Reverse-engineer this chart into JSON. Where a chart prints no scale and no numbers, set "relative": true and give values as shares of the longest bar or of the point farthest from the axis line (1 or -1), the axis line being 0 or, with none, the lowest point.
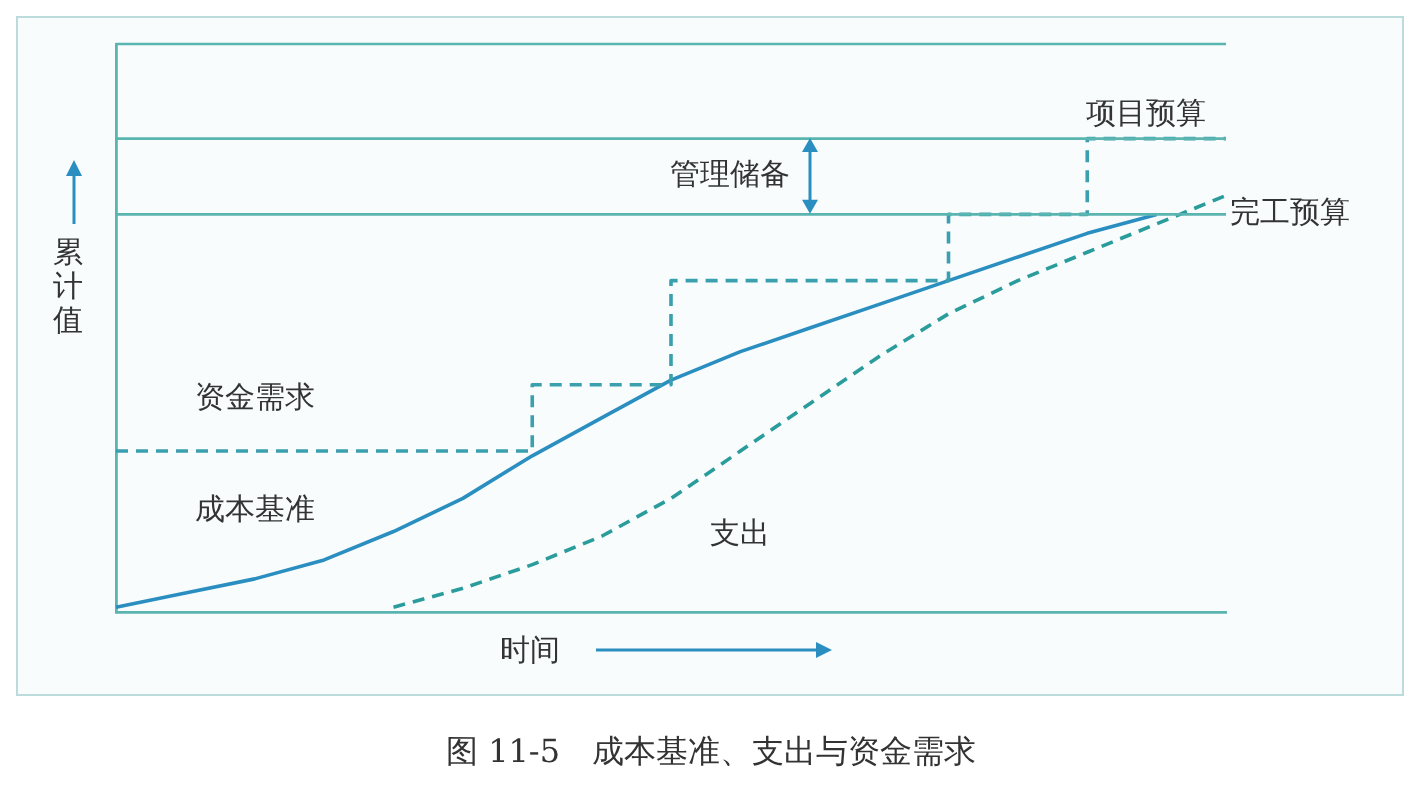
{
  "chart_data": {
    "type": "line",
    "relative": true,
    "xlabel": "时间",
    "ylabel": "累计值",
    "grid": false,
    "legend": false,
    "tick_labels": false,
    "marker": "none",
    "categories": [
      null,
      null,
      null,
      null,
      null,
      null,
      null,
      null,
      null,
      null,
      null,
      null,
      null,
      null,
      null,
      null,
      null
    ],
    "series": [
      {
        "name": "资金需求",
        "type": "step",
        "color": "#3a9fae",
        "line_style": "dashed",
        "values": [
          0.34,
          0.34,
          0.34,
          0.34,
          0.34,
          0.34,
          0.48,
          0.48,
          0.7,
          0.7,
          0.7,
          0.7,
          0.84,
          0.84,
          1.0,
          1.0,
          1.0
        ]
      },
      {
        "name": "成本基准",
        "type": "line",
        "color": "#2a8fc0",
        "line_style": "solid",
        "values": [
          0.01,
          0.04,
          0.07,
          0.11,
          0.17,
          0.24,
          0.33,
          0.41,
          0.49,
          0.55,
          0.6,
          0.65,
          0.7,
          0.75,
          0.8,
          0.84,
          null
        ]
      },
      {
        "name": "支出",
        "type": "line",
        "color": "#2b9c9c",
        "line_style": "dashed",
        "values": [
          null,
          null,
          null,
          null,
          0.01,
          0.05,
          0.1,
          0.16,
          0.24,
          0.34,
          0.44,
          0.54,
          0.63,
          0.7,
          0.76,
          0.82,
          0.88
        ]
      }
    ],
    "ref_lines": [
      {
        "axis": "y",
        "value": 1.0,
        "label": "项目预算",
        "color": "#5ab4b0"
      },
      {
        "axis": "y",
        "value": 0.84,
        "label": "完工预算",
        "color": "#5ab4b0"
      }
    ],
    "annotations": [
      "管理储备",
      "图 11-5　成本基准、支出与资金需求"
    ]
  }
}
